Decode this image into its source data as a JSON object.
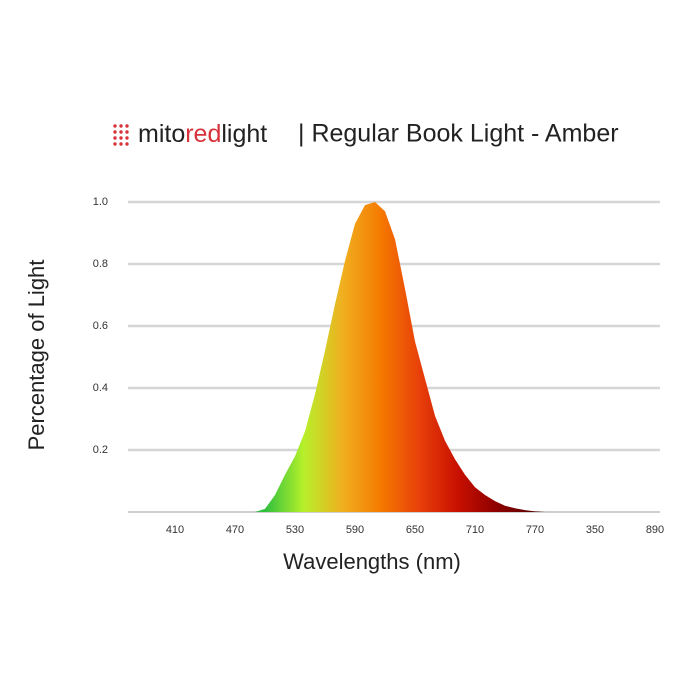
{
  "brand": [
    "mito",
    "red",
    "light"
  ],
  "chart_data": {
    "type": "area",
    "title": "| Regular Book Light - Amber",
    "x_label": "Wavelengths (nm)",
    "y_label": "Percentage of Light",
    "categories": [
      null,
      null,
      null,
      null,
      "410",
      null,
      null,
      null,
      null,
      null,
      "470",
      null,
      null,
      null,
      null,
      null,
      "530",
      null,
      null,
      null,
      null,
      null,
      "590",
      null,
      null,
      null,
      null,
      null,
      "650",
      null,
      null,
      null,
      null,
      null,
      "710",
      null,
      null,
      null,
      null,
      null,
      "770",
      null,
      null,
      null,
      null,
      null,
      "350",
      null,
      null,
      null,
      null,
      null,
      "890"
    ],
    "values": [
      0,
      0,
      0,
      0,
      0,
      0,
      0,
      0,
      0,
      0,
      0,
      0,
      0,
      0.01,
      0.055,
      0.12,
      0.18,
      0.26,
      0.38,
      0.52,
      0.67,
      0.81,
      0.93,
      0.99,
      1.0,
      0.97,
      0.88,
      0.72,
      0.55,
      0.43,
      0.31,
      0.23,
      0.17,
      0.12,
      0.08,
      0.055,
      0.035,
      0.02,
      0.012,
      0.006,
      0.002,
      0,
      0,
      0,
      0,
      0,
      0,
      0,
      0,
      0,
      0,
      0,
      0
    ],
    "colors": [
      "#2fbf3f",
      "#b6f02a",
      "#f0b020",
      "#f57a00",
      "#e8400a",
      "#c81000",
      "#8e0000",
      "#5a0000"
    ],
    "ylim": [
      0,
      1
    ],
    "yticks": [
      0.2,
      0.4,
      0.6,
      0.8,
      {
        "value": 1,
        "label": "1.0"
      }
    ],
    "grid": true
  }
}
